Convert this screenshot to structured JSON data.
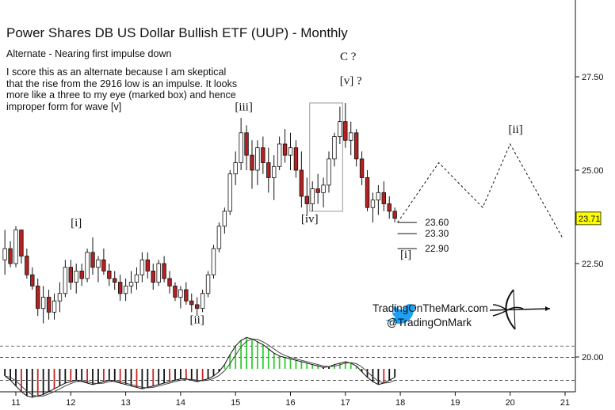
{
  "title": "Power Shares DB US Dollar Bullish ETF (UUP) - Monthly",
  "subtitle": "Alternate - Nearing first impulse down",
  "note": "I score this as an alternate because I am skeptical that the rise from the 2916 low is an impulse. It looks more like a three to my eye (marked box) and hence improper form for wave [v]",
  "branding": {
    "site": "TradingOnTheMark.com",
    "handle": "@TradingOnMark",
    "twitter_icon": "twitter-bird-icon",
    "logo_icon": "archer-bow-icon"
  },
  "colors": {
    "up": "#ffffff",
    "down": "#b22222",
    "hist_up": "#33cc33",
    "hist_down": "#cc2222",
    "hist_neutral": "#111111",
    "price_tag": "#ffff00"
  },
  "chart_data": {
    "type": "candlestick",
    "x_ticks": [
      "11",
      "12",
      "13",
      "14",
      "15",
      "16",
      "17",
      "18",
      "19",
      "20",
      "21"
    ],
    "y_ticks": [
      "20.00",
      "22.50",
      "25.00",
      "27.50"
    ],
    "ylim": [
      19.0,
      29.5
    ],
    "last_price": "23.71",
    "candles": [
      {
        "t": 10.8,
        "o": 22.6,
        "h": 23.4,
        "l": 22.2,
        "c": 22.9
      },
      {
        "t": 10.9,
        "o": 22.9,
        "h": 23.1,
        "l": 22.4,
        "c": 22.5
      },
      {
        "t": 11.0,
        "o": 22.5,
        "h": 23.5,
        "l": 22.4,
        "c": 23.4
      },
      {
        "t": 11.1,
        "o": 23.4,
        "h": 23.4,
        "l": 22.5,
        "c": 22.7
      },
      {
        "t": 11.2,
        "o": 22.7,
        "h": 22.9,
        "l": 22.1,
        "c": 22.2
      },
      {
        "t": 11.3,
        "o": 22.2,
        "h": 22.4,
        "l": 21.8,
        "c": 21.9
      },
      {
        "t": 11.4,
        "o": 21.9,
        "h": 22.1,
        "l": 21.1,
        "c": 21.3
      },
      {
        "t": 11.5,
        "o": 21.3,
        "h": 21.9,
        "l": 20.9,
        "c": 21.6
      },
      {
        "t": 11.6,
        "o": 21.6,
        "h": 21.8,
        "l": 21.0,
        "c": 21.2
      },
      {
        "t": 11.7,
        "o": 21.2,
        "h": 21.7,
        "l": 21.0,
        "c": 21.5
      },
      {
        "t": 11.8,
        "o": 21.5,
        "h": 22.0,
        "l": 21.2,
        "c": 21.7
      },
      {
        "t": 11.9,
        "o": 21.7,
        "h": 22.6,
        "l": 21.6,
        "c": 22.4
      },
      {
        "t": 12.0,
        "o": 22.4,
        "h": 22.6,
        "l": 21.8,
        "c": 22.0
      },
      {
        "t": 12.1,
        "o": 22.0,
        "h": 22.5,
        "l": 21.7,
        "c": 22.3
      },
      {
        "t": 12.2,
        "o": 22.3,
        "h": 22.5,
        "l": 21.9,
        "c": 22.1
      },
      {
        "t": 12.3,
        "o": 22.1,
        "h": 22.9,
        "l": 22.0,
        "c": 22.8
      },
      {
        "t": 12.4,
        "o": 22.8,
        "h": 23.2,
        "l": 22.2,
        "c": 22.4
      },
      {
        "t": 12.5,
        "o": 22.4,
        "h": 22.7,
        "l": 22.0,
        "c": 22.6
      },
      {
        "t": 12.6,
        "o": 22.6,
        "h": 22.9,
        "l": 22.2,
        "c": 22.3
      },
      {
        "t": 12.7,
        "o": 22.3,
        "h": 22.5,
        "l": 21.9,
        "c": 22.1
      },
      {
        "t": 12.8,
        "o": 22.1,
        "h": 22.3,
        "l": 21.8,
        "c": 22.0
      },
      {
        "t": 12.9,
        "o": 22.0,
        "h": 22.2,
        "l": 21.5,
        "c": 21.7
      },
      {
        "t": 13.0,
        "o": 21.7,
        "h": 22.1,
        "l": 21.5,
        "c": 21.9
      },
      {
        "t": 13.1,
        "o": 21.9,
        "h": 22.3,
        "l": 21.7,
        "c": 22.0
      },
      {
        "t": 13.2,
        "o": 22.0,
        "h": 22.4,
        "l": 21.8,
        "c": 22.2
      },
      {
        "t": 13.3,
        "o": 22.2,
        "h": 22.8,
        "l": 22.0,
        "c": 22.6
      },
      {
        "t": 13.4,
        "o": 22.6,
        "h": 22.8,
        "l": 22.1,
        "c": 22.3
      },
      {
        "t": 13.5,
        "o": 22.3,
        "h": 22.5,
        "l": 21.8,
        "c": 22.0
      },
      {
        "t": 13.6,
        "o": 22.0,
        "h": 22.6,
        "l": 21.9,
        "c": 22.5
      },
      {
        "t": 13.7,
        "o": 22.5,
        "h": 22.7,
        "l": 22.0,
        "c": 22.1
      },
      {
        "t": 13.8,
        "o": 22.1,
        "h": 22.3,
        "l": 21.7,
        "c": 21.9
      },
      {
        "t": 13.9,
        "o": 21.9,
        "h": 22.0,
        "l": 21.5,
        "c": 21.6
      },
      {
        "t": 14.0,
        "o": 21.6,
        "h": 21.9,
        "l": 21.3,
        "c": 21.8
      },
      {
        "t": 14.1,
        "o": 21.8,
        "h": 22.0,
        "l": 21.4,
        "c": 21.5
      },
      {
        "t": 14.2,
        "o": 21.5,
        "h": 21.7,
        "l": 21.2,
        "c": 21.4
      },
      {
        "t": 14.3,
        "o": 21.4,
        "h": 21.6,
        "l": 21.1,
        "c": 21.3
      },
      {
        "t": 14.4,
        "o": 21.3,
        "h": 21.8,
        "l": 21.2,
        "c": 21.7
      },
      {
        "t": 14.5,
        "o": 21.7,
        "h": 22.3,
        "l": 21.6,
        "c": 22.2
      },
      {
        "t": 14.6,
        "o": 22.2,
        "h": 23.0,
        "l": 22.1,
        "c": 22.9
      },
      {
        "t": 14.7,
        "o": 22.9,
        "h": 23.6,
        "l": 22.8,
        "c": 23.5
      },
      {
        "t": 14.8,
        "o": 23.5,
        "h": 24.0,
        "l": 23.3,
        "c": 23.9
      },
      {
        "t": 14.9,
        "o": 23.9,
        "h": 25.0,
        "l": 23.8,
        "c": 24.9
      },
      {
        "t": 15.0,
        "o": 24.9,
        "h": 25.5,
        "l": 24.6,
        "c": 25.2
      },
      {
        "t": 15.1,
        "o": 25.2,
        "h": 26.4,
        "l": 25.0,
        "c": 26.0
      },
      {
        "t": 15.2,
        "o": 26.0,
        "h": 26.2,
        "l": 25.0,
        "c": 25.4
      },
      {
        "t": 15.3,
        "o": 25.4,
        "h": 25.8,
        "l": 24.5,
        "c": 25.0
      },
      {
        "t": 15.4,
        "o": 25.0,
        "h": 25.8,
        "l": 24.6,
        "c": 25.6
      },
      {
        "t": 15.5,
        "o": 25.6,
        "h": 25.9,
        "l": 24.9,
        "c": 25.2
      },
      {
        "t": 15.6,
        "o": 25.2,
        "h": 25.6,
        "l": 24.4,
        "c": 24.8
      },
      {
        "t": 15.7,
        "o": 24.8,
        "h": 25.4,
        "l": 24.2,
        "c": 25.1
      },
      {
        "t": 15.8,
        "o": 25.1,
        "h": 25.9,
        "l": 25.0,
        "c": 25.7
      },
      {
        "t": 15.9,
        "o": 25.7,
        "h": 26.1,
        "l": 25.2,
        "c": 25.4
      },
      {
        "t": 16.0,
        "o": 25.4,
        "h": 26.0,
        "l": 25.0,
        "c": 25.6
      },
      {
        "t": 16.1,
        "o": 25.6,
        "h": 25.8,
        "l": 24.8,
        "c": 25.0
      },
      {
        "t": 16.2,
        "o": 25.0,
        "h": 25.5,
        "l": 24.0,
        "c": 24.3
      },
      {
        "t": 16.3,
        "o": 24.3,
        "h": 24.8,
        "l": 23.8,
        "c": 24.1
      },
      {
        "t": 16.4,
        "o": 24.1,
        "h": 24.7,
        "l": 23.9,
        "c": 24.5
      },
      {
        "t": 16.5,
        "o": 24.5,
        "h": 24.9,
        "l": 24.1,
        "c": 24.4
      },
      {
        "t": 16.6,
        "o": 24.4,
        "h": 24.8,
        "l": 24.0,
        "c": 24.6
      },
      {
        "t": 16.7,
        "o": 24.6,
        "h": 25.5,
        "l": 24.4,
        "c": 25.3
      },
      {
        "t": 16.8,
        "o": 25.3,
        "h": 26.0,
        "l": 25.1,
        "c": 25.9
      },
      {
        "t": 16.9,
        "o": 25.9,
        "h": 26.7,
        "l": 25.7,
        "c": 26.3
      },
      {
        "t": 17.0,
        "o": 26.3,
        "h": 26.8,
        "l": 25.6,
        "c": 25.8
      },
      {
        "t": 17.1,
        "o": 25.8,
        "h": 26.3,
        "l": 25.4,
        "c": 26.0
      },
      {
        "t": 17.2,
        "o": 26.0,
        "h": 26.1,
        "l": 25.1,
        "c": 25.3
      },
      {
        "t": 17.3,
        "o": 25.3,
        "h": 25.5,
        "l": 24.6,
        "c": 24.8
      },
      {
        "t": 17.4,
        "o": 24.8,
        "h": 25.0,
        "l": 23.9,
        "c": 24.0
      },
      {
        "t": 17.5,
        "o": 24.0,
        "h": 24.4,
        "l": 23.6,
        "c": 24.2
      },
      {
        "t": 17.6,
        "o": 24.2,
        "h": 24.6,
        "l": 23.8,
        "c": 24.4
      },
      {
        "t": 17.7,
        "o": 24.4,
        "h": 24.7,
        "l": 23.9,
        "c": 24.1
      },
      {
        "t": 17.8,
        "o": 24.1,
        "h": 24.3,
        "l": 23.7,
        "c": 23.9
      },
      {
        "t": 17.9,
        "o": 23.9,
        "h": 24.0,
        "l": 23.6,
        "c": 23.71
      }
    ],
    "projection": [
      [
        17.95,
        23.6
      ],
      [
        18.7,
        25.2
      ],
      [
        19.5,
        24.0
      ],
      [
        20.0,
        25.7
      ],
      [
        20.95,
        23.2
      ]
    ],
    "labels": [
      {
        "text": "[i]",
        "t": 12.1,
        "v": 23.5
      },
      {
        "text": "[ii]",
        "t": 14.3,
        "v": 20.9
      },
      {
        "text": "[iii]",
        "t": 15.15,
        "v": 26.6
      },
      {
        "text": "[iv]",
        "t": 16.35,
        "v": 23.6
      },
      {
        "text": "[v] ?",
        "t": 17.1,
        "v": 27.3
      },
      {
        "text": "C ?",
        "t": 17.05,
        "v": 27.95
      },
      {
        "text": "[ii]",
        "t": 20.1,
        "v": 26.0
      },
      {
        "text": "[i]",
        "t": 18.1,
        "v": 22.65
      }
    ],
    "targets": [
      {
        "text": "23.60",
        "v": 23.6
      },
      {
        "text": "23.30",
        "v": 23.3
      },
      {
        "text": "22.90",
        "v": 22.9
      }
    ],
    "box": {
      "t1": 16.35,
      "t2": 16.95,
      "v1": 23.9,
      "v2": 26.8
    },
    "oscillator": {
      "hist": [
        -0.5,
        -0.8,
        -1.2,
        -1.6,
        -1.9,
        -2.0,
        -1.9,
        -1.8,
        -1.6,
        -1.4,
        -1.2,
        -1.0,
        -0.9,
        -0.8,
        -0.9,
        -1.0,
        -1.1,
        -1.0,
        -0.9,
        -0.8,
        -0.9,
        -1.0,
        -1.1,
        -1.2,
        -1.3,
        -1.4,
        -1.3,
        -1.2,
        -1.1,
        -1.0,
        -0.9,
        -0.8,
        -0.7,
        -0.7,
        -0.8,
        -0.9,
        -0.8,
        -0.7,
        -0.5,
        -0.2,
        0.3,
        1.0,
        1.6,
        2.0,
        2.2,
        2.1,
        1.9,
        1.7,
        1.4,
        1.1,
        0.9,
        0.8,
        0.7,
        0.6,
        0.5,
        0.4,
        0.3,
        0.2,
        0.1,
        0.15,
        0.3,
        0.4,
        0.5,
        0.4,
        0.2,
        -0.2,
        -0.6,
        -0.9,
        -1.1,
        -1.0,
        -0.8,
        -0.6
      ],
      "ref_lines": [
        1.6,
        0.8,
        -0.8,
        -1.6
      ]
    }
  }
}
